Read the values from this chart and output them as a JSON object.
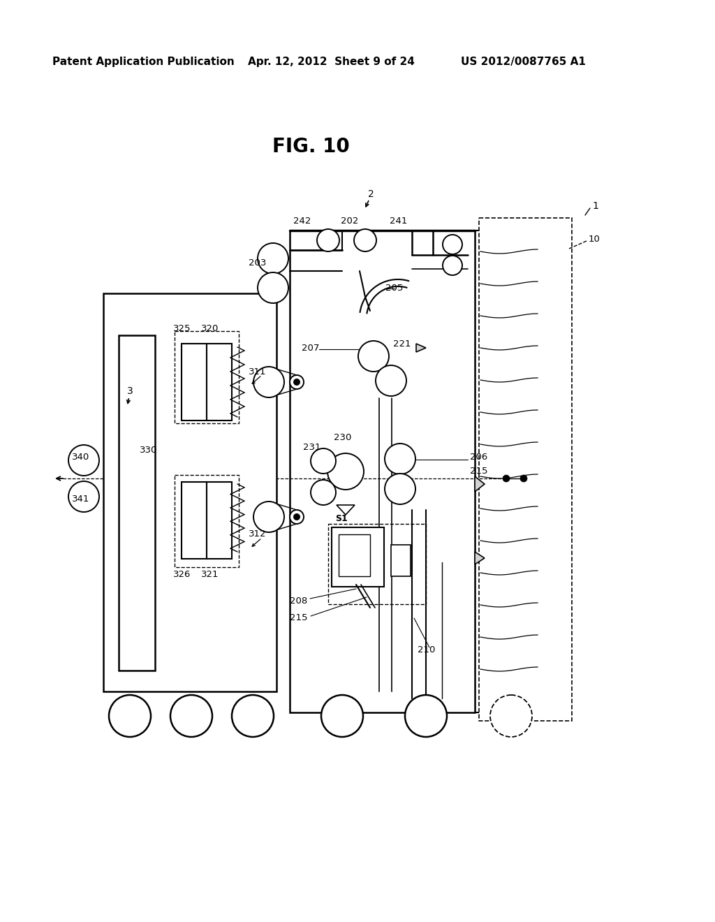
{
  "header_left": "Patent Application Publication",
  "header_center": "Apr. 12, 2012  Sheet 9 of 24",
  "header_right": "US 2012/0087765 A1",
  "fig_title": "FIG. 10",
  "bg_color": "#ffffff"
}
